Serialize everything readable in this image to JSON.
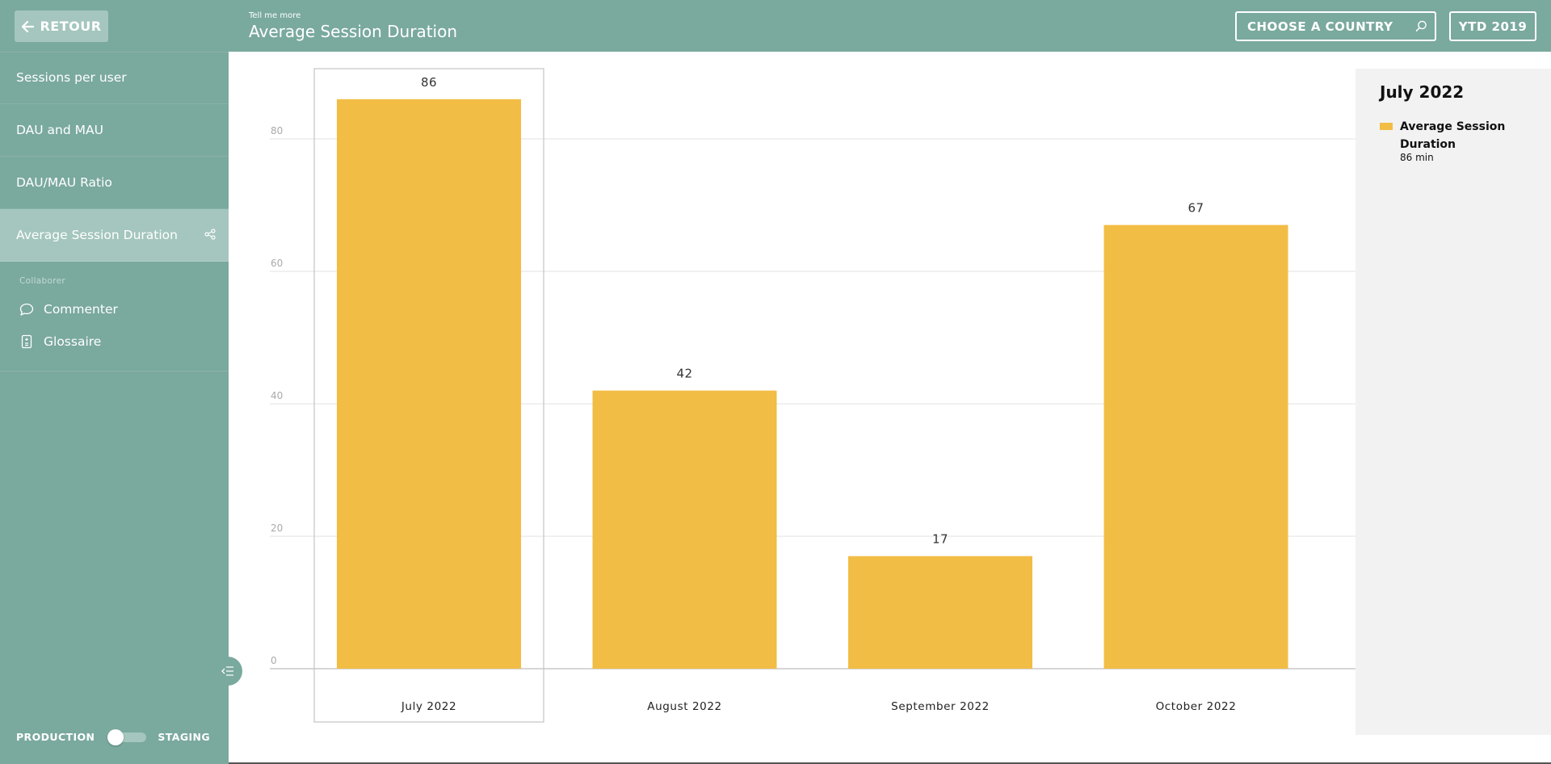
{
  "sidebar": {
    "back_label": "RETOUR",
    "items": [
      {
        "label": "Sessions per user"
      },
      {
        "label": "DAU and MAU"
      },
      {
        "label": "DAU/MAU Ratio"
      },
      {
        "label": "Average Session Duration",
        "active": true
      }
    ],
    "collab_title": "Collaborer",
    "collab_items": [
      {
        "label": "Commenter",
        "icon": "comment-icon"
      },
      {
        "label": "Glossaire",
        "icon": "glossary-icon"
      }
    ],
    "env": {
      "left": "PRODUCTION",
      "right": "STAGING"
    }
  },
  "header": {
    "subtitle": "Tell me more",
    "title": "Average Session Duration",
    "country_placeholder": "CHOOSE A COUNTRY",
    "period": "YTD 2019"
  },
  "colors": {
    "sidebar": "#7aa99e",
    "active_item": "#a4c6be",
    "bar": "#f2bd45",
    "legend_bg": "#f2f2f2"
  },
  "legend": {
    "title": "July 2022",
    "series_name": "Average Session Duration",
    "value_text": "86 min"
  },
  "chart_data": {
    "type": "bar",
    "categories": [
      "July 2022",
      "August 2022",
      "September 2022",
      "October 2022"
    ],
    "values": [
      86,
      42,
      17,
      67
    ],
    "yticks": [
      0,
      20,
      40,
      60,
      80
    ],
    "ylim": [
      0,
      88
    ],
    "highlighted": "July 2022",
    "title": "",
    "xlabel": "",
    "ylabel": ""
  }
}
